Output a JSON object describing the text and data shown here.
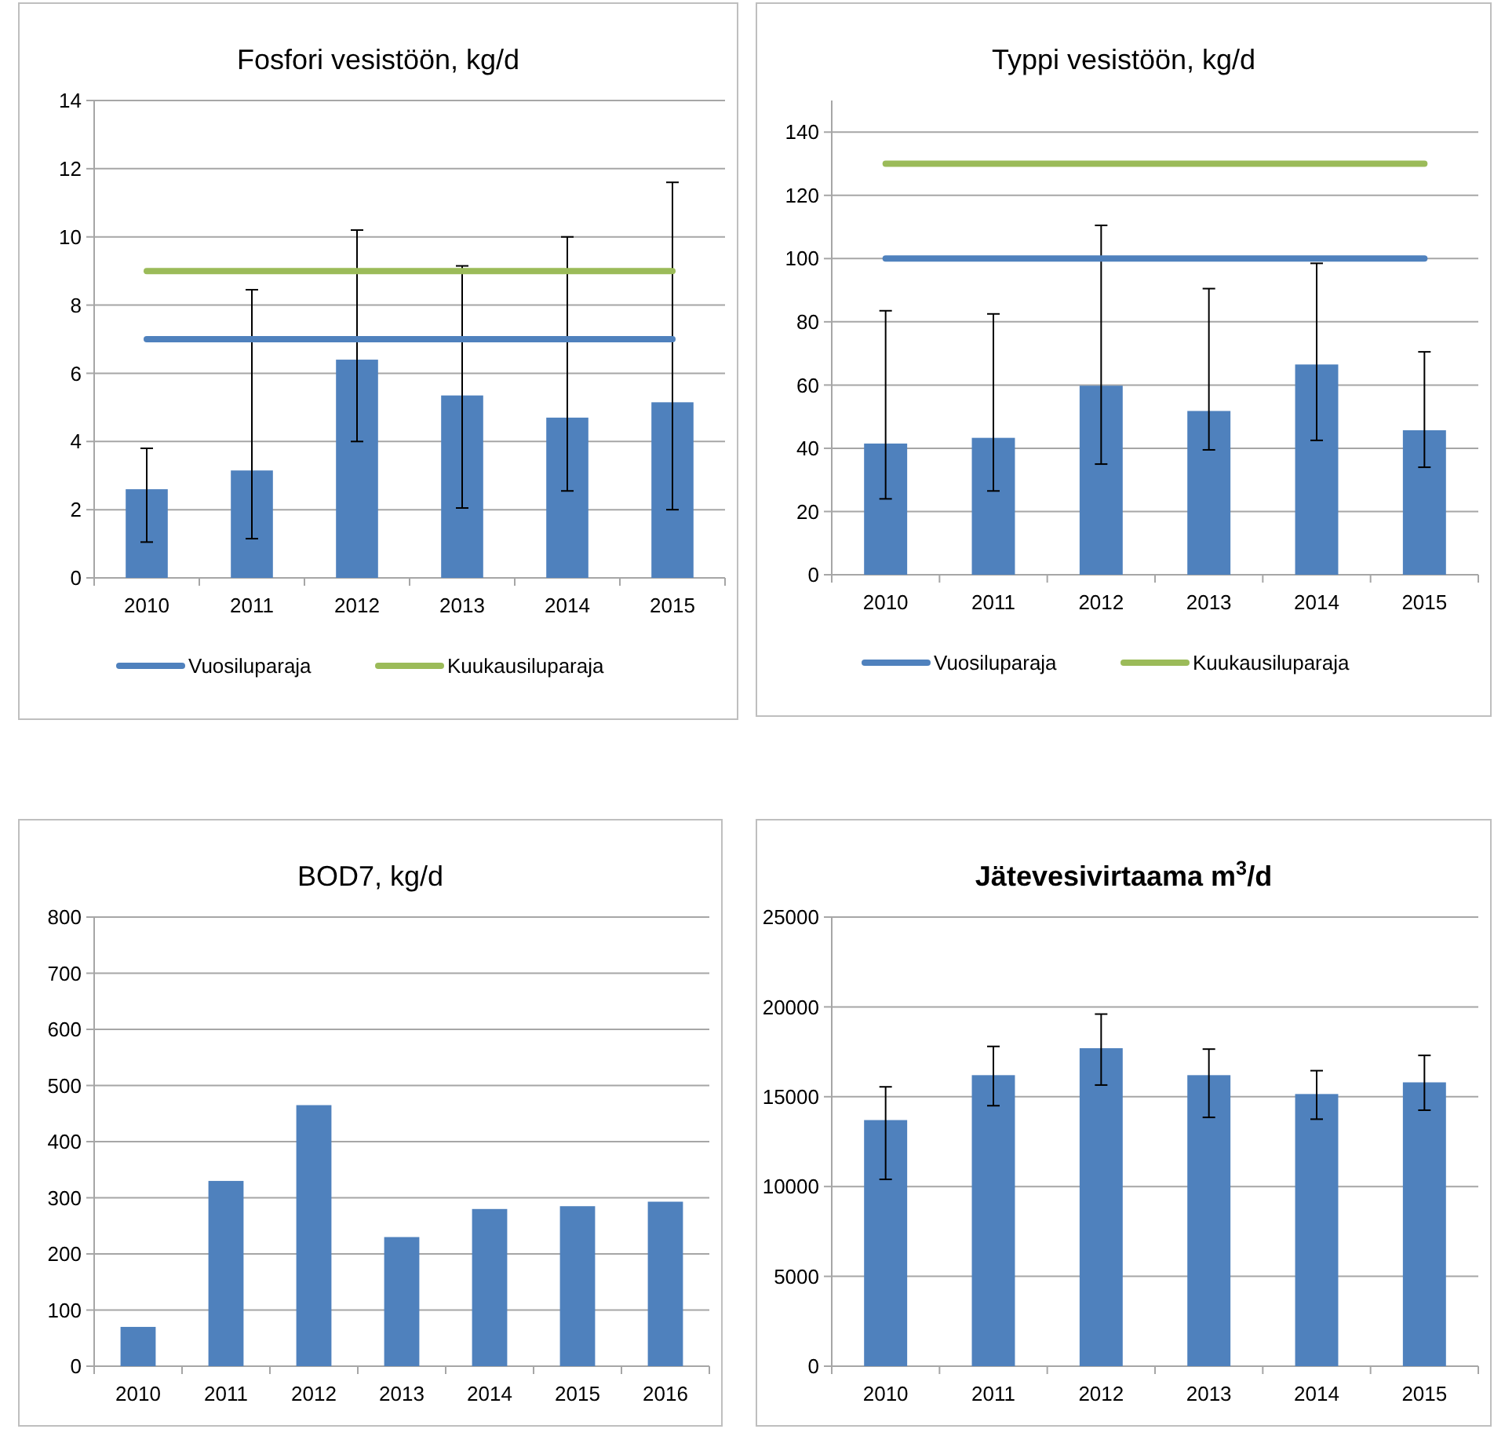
{
  "chart_data": [
    {
      "type": "bar",
      "title": "Fosfori vesistöön, kg/d",
      "categories": [
        "2010",
        "2011",
        "2012",
        "2013",
        "2014",
        "2015"
      ],
      "ylim": [
        0,
        14
      ],
      "yticks": [
        0,
        2,
        4,
        6,
        8,
        10,
        12,
        14
      ],
      "grid": "y",
      "legend": "bottom",
      "series": [
        {
          "type": "bar",
          "color": "#4f81bd",
          "values": [
            2.6,
            3.15,
            6.4,
            5.35,
            4.7,
            5.15
          ],
          "errors": [
            [
              1.05,
              3.8
            ],
            [
              1.15,
              8.45
            ],
            [
              4.0,
              10.2
            ],
            [
              2.05,
              9.15
            ],
            [
              2.55,
              10.0
            ],
            [
              2.0,
              11.6
            ]
          ]
        },
        {
          "type": "line",
          "name": "Vuosiluparaja",
          "color": "#4f81bd",
          "values": [
            7,
            7,
            7,
            7,
            7,
            7
          ]
        },
        {
          "type": "line",
          "name": "Kuukausiluparaja",
          "color": "#9bbb59",
          "values": [
            9,
            9,
            9,
            9,
            9,
            9
          ]
        }
      ]
    },
    {
      "type": "bar",
      "title": "Typpi vesistöön, kg/d",
      "categories": [
        "2010",
        "2011",
        "2012",
        "2013",
        "2014",
        "2015"
      ],
      "ylim": [
        0,
        150
      ],
      "yticks": [
        0,
        20,
        40,
        60,
        80,
        100,
        120,
        140
      ],
      "grid": "y",
      "legend": "bottom",
      "series": [
        {
          "type": "bar",
          "color": "#4f81bd",
          "values": [
            41.5,
            43.3,
            59.8,
            51.8,
            66.5,
            45.7
          ],
          "errors": [
            [
              24,
              83.5
            ],
            [
              26.5,
              82.5
            ],
            [
              35,
              110.5
            ],
            [
              39.5,
              90.5
            ],
            [
              42.5,
              98.5
            ],
            [
              34,
              70.5
            ]
          ]
        },
        {
          "type": "line",
          "name": "Vuosiluparaja",
          "color": "#4f81bd",
          "values": [
            100,
            100,
            100,
            100,
            100,
            100
          ]
        },
        {
          "type": "line",
          "name": "Kuukausiluparaja",
          "color": "#9bbb59",
          "values": [
            130,
            130,
            130,
            130,
            130,
            130
          ]
        }
      ]
    },
    {
      "type": "bar",
      "title": "BOD7, kg/d",
      "categories": [
        "2010",
        "2011",
        "2012",
        "2013",
        "2014",
        "2015",
        "2016"
      ],
      "ylim": [
        0,
        800
      ],
      "yticks": [
        0,
        100,
        200,
        300,
        400,
        500,
        600,
        700,
        800
      ],
      "grid": "y",
      "series": [
        {
          "type": "bar",
          "color": "#4f81bd",
          "values": [
            70,
            330,
            465,
            230,
            280,
            285,
            293
          ]
        }
      ]
    },
    {
      "type": "bar",
      "title": "Jätevesivirtaama m$^{3}$/d",
      "categories": [
        "2010",
        "2011",
        "2012",
        "2013",
        "2014",
        "2015"
      ],
      "ylim": [
        0,
        25000
      ],
      "yticks": [
        0,
        5000,
        10000,
        15000,
        20000,
        25000
      ],
      "grid": "y",
      "series": [
        {
          "type": "bar",
          "color": "#4f81bd",
          "values": [
            13700,
            16200,
            17700,
            16200,
            15150,
            15800
          ],
          "errors": [
            [
              10400,
              15550
            ],
            [
              14500,
              17800
            ],
            [
              15650,
              19600
            ],
            [
              13850,
              17650
            ],
            [
              13750,
              16450
            ],
            [
              14250,
              17300
            ]
          ]
        }
      ]
    }
  ]
}
